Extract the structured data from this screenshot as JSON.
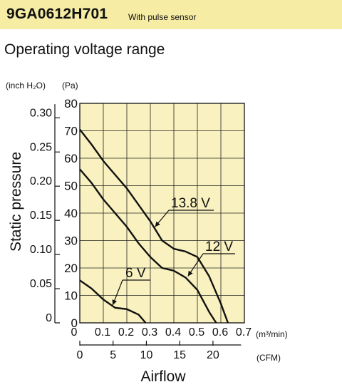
{
  "header": {
    "model": "9GA0612H701",
    "tag": "With pulse sensor"
  },
  "subtitle": "Operating voltage range",
  "chart_data": {
    "type": "line",
    "title": "",
    "xlabel": "Airflow",
    "ylabel": "Static pressure",
    "units": {
      "left_y": "(inch H₂O)",
      "right_y": "(Pa)",
      "x_top": "(m³/min)",
      "x_bottom": "(CFM)"
    },
    "xlim": [
      0,
      0.7
    ],
    "ylim_pa": [
      0,
      80
    ],
    "ylim_inch": [
      0,
      0.32
    ],
    "grid": true,
    "axis_pa_ticks": [
      "0",
      "10",
      "20",
      "30",
      "40",
      "50",
      "60",
      "70",
      "80"
    ],
    "axis_inch_ticks": [
      "0",
      "0.05",
      "0.10",
      "0.15",
      "0.20",
      "0.25",
      "0.30"
    ],
    "axis_inch_values": [
      0,
      0.05,
      0.1,
      0.15,
      0.2,
      0.25,
      0.3
    ],
    "axis_m3_ticks": [
      "0",
      "0.1",
      "0.2",
      "0.3",
      "0.4",
      "0.5",
      "0.6",
      "0.7"
    ],
    "axis_cfm_ticks": [
      "0",
      "5",
      "10",
      "15",
      "20"
    ],
    "axis_cfm_values": [
      0,
      5,
      10,
      15,
      20
    ],
    "series": [
      {
        "name": "13.8 V",
        "x": [
          0.0,
          0.05,
          0.1,
          0.15,
          0.2,
          0.25,
          0.3,
          0.35,
          0.4,
          0.45,
          0.5,
          0.55,
          0.6,
          0.63
        ],
        "y": [
          70.5,
          65.0,
          59.0,
          54.0,
          49.0,
          43.0,
          37.0,
          30.0,
          27.0,
          26.0,
          24.0,
          17.0,
          7.0,
          0.0
        ]
      },
      {
        "name": "12 V",
        "x": [
          0.0,
          0.05,
          0.1,
          0.15,
          0.2,
          0.25,
          0.3,
          0.35,
          0.4,
          0.45,
          0.5,
          0.55,
          0.58
        ],
        "y": [
          56.0,
          51.0,
          45.0,
          40.0,
          35.0,
          29.0,
          24.0,
          20.0,
          19.0,
          16.5,
          12.0,
          4.0,
          0.0
        ]
      },
      {
        "name": "6 V",
        "x": [
          0.0,
          0.05,
          0.1,
          0.15,
          0.2,
          0.25,
          0.28
        ],
        "y": [
          15.5,
          12.5,
          8.5,
          5.5,
          5.0,
          3.0,
          0.0
        ]
      }
    ],
    "annotations": [
      "13.8 V",
      "12 V",
      "6 V"
    ]
  }
}
